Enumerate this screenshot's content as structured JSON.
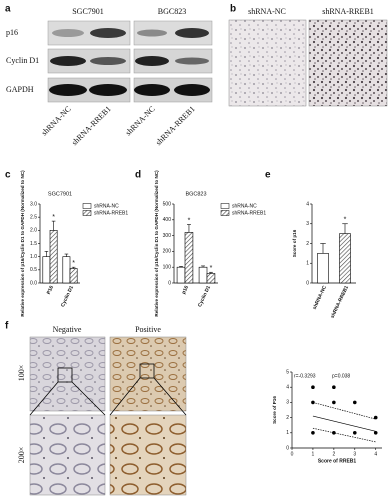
{
  "panel_labels": [
    "a",
    "b",
    "c",
    "d",
    "e",
    "f"
  ],
  "blot": {
    "cell_lines": [
      "SGC7901",
      "BGC823"
    ],
    "proteins": [
      "p16",
      "Cyclin D1",
      "GAPDH"
    ],
    "lanes": [
      "shRNA-NC",
      "shRNA-RREB1",
      "shRNA-NC",
      "shRNA-RREB1"
    ]
  },
  "ihc_b": {
    "labels": [
      "shRNA-NC",
      "shRNA-RREB1"
    ]
  },
  "ihc_f": {
    "columns": [
      "Negative",
      "Positive"
    ],
    "rows": [
      "100×",
      "200×"
    ]
  },
  "chart_data": [
    {
      "type": "bar",
      "title": "SGC7901",
      "y_label": "Relative expression of p16/Cyclin D1 to GAPDH (Normalized to NC)",
      "categories": [
        "P16",
        "Cyclin D1"
      ],
      "significance_marker": "*",
      "series": [
        {
          "name": "shRNA-NC",
          "color": "#ffffff",
          "values": [
            1.0,
            1.0
          ],
          "errors": [
            0.2,
            0.1
          ],
          "significant": [
            false,
            false
          ]
        },
        {
          "name": "shRNA-RREB1",
          "color": "#555555",
          "values": [
            2.0,
            0.55
          ],
          "errors": [
            0.35,
            0.05
          ],
          "significant": [
            true,
            true
          ]
        }
      ],
      "ylim": [
        0,
        3
      ],
      "yticks": [
        {
          "value": 0,
          "label": "0.0"
        },
        {
          "value": 0.5,
          "label": "0.5"
        },
        {
          "value": 1,
          "label": "1.0"
        },
        {
          "value": 1.5,
          "label": "1.5"
        },
        {
          "value": 2,
          "label": "2.0"
        },
        {
          "value": 2.5,
          "label": "2.5"
        },
        {
          "value": 3,
          "label": "3.0"
        }
      ]
    },
    {
      "type": "bar",
      "title": "BGC823",
      "y_label": "Relative expression of p16/Cyclin D1 to GAPDH (Normalized to NC)",
      "categories": [
        "p16",
        "Cyclin D1"
      ],
      "significance_marker": "*",
      "series": [
        {
          "name": "shRNA-NC",
          "color": "#ffffff",
          "values": [
            100,
            100
          ],
          "errors": [
            5,
            8
          ],
          "significant": [
            false,
            false
          ]
        },
        {
          "name": "shRNA-RREB1",
          "color": "#555555",
          "values": [
            320,
            60
          ],
          "errors": [
            50,
            8
          ],
          "significant": [
            true,
            true
          ]
        }
      ],
      "ylim": [
        0,
        500
      ],
      "yticks": [
        0,
        100,
        200,
        300,
        400,
        500
      ]
    },
    {
      "type": "bar",
      "y_label": "Score of p16",
      "categories": [
        "shRNA-NC",
        "shRNA-RREB1"
      ],
      "significance_marker": "*",
      "values": [
        1.5,
        2.5
      ],
      "errors": [
        0.5,
        0.5
      ],
      "colors": [
        "#ffffff",
        "#555555"
      ],
      "significant": [
        false,
        true
      ],
      "ylim": [
        0,
        4
      ],
      "yticks": [
        0,
        1,
        2,
        3,
        4
      ]
    },
    {
      "type": "scatter",
      "x_label": "Score of RREB1",
      "y_label": "Score of P16",
      "annotations": [
        "r=-0.3293",
        "p=0.038"
      ],
      "x": [
        1,
        1,
        1,
        2,
        2,
        2,
        3,
        3,
        4,
        4
      ],
      "y": [
        4,
        3,
        1,
        4,
        3,
        1,
        3,
        1,
        2,
        1
      ],
      "color": "#000000",
      "fit_x": [
        1,
        4
      ],
      "fit_y": [
        2.1,
        1.1
      ],
      "ci_upper": [
        3.0,
        1.9
      ],
      "ci_lower": [
        1.3,
        0.4
      ],
      "xlim": [
        0,
        4.3
      ],
      "xticks": [
        0,
        1,
        2,
        3,
        4
      ],
      "ylim": [
        0,
        5
      ],
      "yticks": [
        0,
        1,
        2,
        3,
        4,
        5
      ]
    }
  ]
}
